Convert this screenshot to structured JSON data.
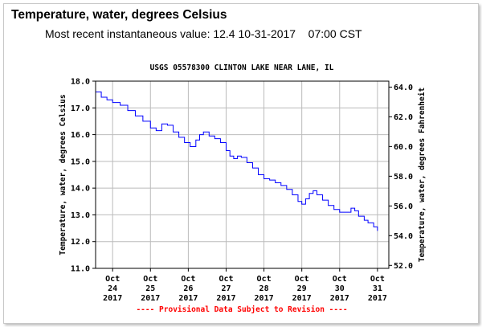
{
  "header": {
    "title": "Temperature, water, degrees Celsius",
    "recent_prefix": "Most recent instantaneous value: ",
    "recent_value": "12.4",
    "recent_date": "10-31-2017",
    "recent_time": "07:00 CST"
  },
  "chart_data": {
    "type": "line",
    "title": "USGS 05578300 CLINTON LAKE NEAR LANE, IL",
    "ylabel_left": "Temperature, water, degrees Celsius",
    "ylabel_right": "Temperature, water, degrees Fahrenheit",
    "ylim": [
      11.0,
      18.0
    ],
    "yticks_left": [
      "18.0",
      "17.0",
      "16.0",
      "15.0",
      "14.0",
      "13.0",
      "12.0",
      "11.0"
    ],
    "yticks_right": [
      "64.0",
      "62.0",
      "60.0",
      "58.0",
      "56.0",
      "54.0",
      "52.0"
    ],
    "xlim": [
      23.55,
      31.3
    ],
    "x_unit": "day of October 2017",
    "xticks": [
      {
        "day": 24,
        "label": [
          "Oct",
          "24",
          "2017"
        ]
      },
      {
        "day": 25,
        "label": [
          "Oct",
          "25",
          "2017"
        ]
      },
      {
        "day": 26,
        "label": [
          "Oct",
          "26",
          "2017"
        ]
      },
      {
        "day": 27,
        "label": [
          "Oct",
          "27",
          "2017"
        ]
      },
      {
        "day": 28,
        "label": [
          "Oct",
          "28",
          "2017"
        ]
      },
      {
        "day": 29,
        "label": [
          "Oct",
          "29",
          "2017"
        ]
      },
      {
        "day": 30,
        "label": [
          "Oct",
          "30",
          "2017"
        ]
      },
      {
        "day": 31,
        "label": [
          "Oct",
          "31",
          "2017"
        ]
      }
    ],
    "grid": true,
    "line_color": "#0000ff",
    "series": [
      {
        "points": [
          [
            23.56,
            17.6
          ],
          [
            23.7,
            17.4
          ],
          [
            23.85,
            17.3
          ],
          [
            24.0,
            17.2
          ],
          [
            24.2,
            17.1
          ],
          [
            24.4,
            16.9
          ],
          [
            24.6,
            16.7
          ],
          [
            24.8,
            16.5
          ],
          [
            25.0,
            16.25
          ],
          [
            25.15,
            16.15
          ],
          [
            25.3,
            16.4
          ],
          [
            25.45,
            16.35
          ],
          [
            25.6,
            16.1
          ],
          [
            25.75,
            15.9
          ],
          [
            25.9,
            15.7
          ],
          [
            26.05,
            15.55
          ],
          [
            26.2,
            15.8
          ],
          [
            26.3,
            16.0
          ],
          [
            26.4,
            16.1
          ],
          [
            26.55,
            15.95
          ],
          [
            26.7,
            15.85
          ],
          [
            26.85,
            15.7
          ],
          [
            27.0,
            15.4
          ],
          [
            27.1,
            15.2
          ],
          [
            27.2,
            15.1
          ],
          [
            27.3,
            15.2
          ],
          [
            27.4,
            15.15
          ],
          [
            27.55,
            14.95
          ],
          [
            27.7,
            14.75
          ],
          [
            27.85,
            14.5
          ],
          [
            28.0,
            14.35
          ],
          [
            28.15,
            14.3
          ],
          [
            28.3,
            14.2
          ],
          [
            28.45,
            14.1
          ],
          [
            28.6,
            13.95
          ],
          [
            28.75,
            13.75
          ],
          [
            28.9,
            13.5
          ],
          [
            29.0,
            13.4
          ],
          [
            29.1,
            13.6
          ],
          [
            29.2,
            13.8
          ],
          [
            29.3,
            13.9
          ],
          [
            29.4,
            13.75
          ],
          [
            29.55,
            13.55
          ],
          [
            29.7,
            13.35
          ],
          [
            29.85,
            13.2
          ],
          [
            30.0,
            13.1
          ],
          [
            30.15,
            13.1
          ],
          [
            30.3,
            13.25
          ],
          [
            30.4,
            13.15
          ],
          [
            30.5,
            12.95
          ],
          [
            30.65,
            12.8
          ],
          [
            30.75,
            12.7
          ],
          [
            30.9,
            12.55
          ],
          [
            31.0,
            12.4
          ]
        ]
      }
    ],
    "footnote": "---- Provisional Data Subject to Revision ----"
  }
}
